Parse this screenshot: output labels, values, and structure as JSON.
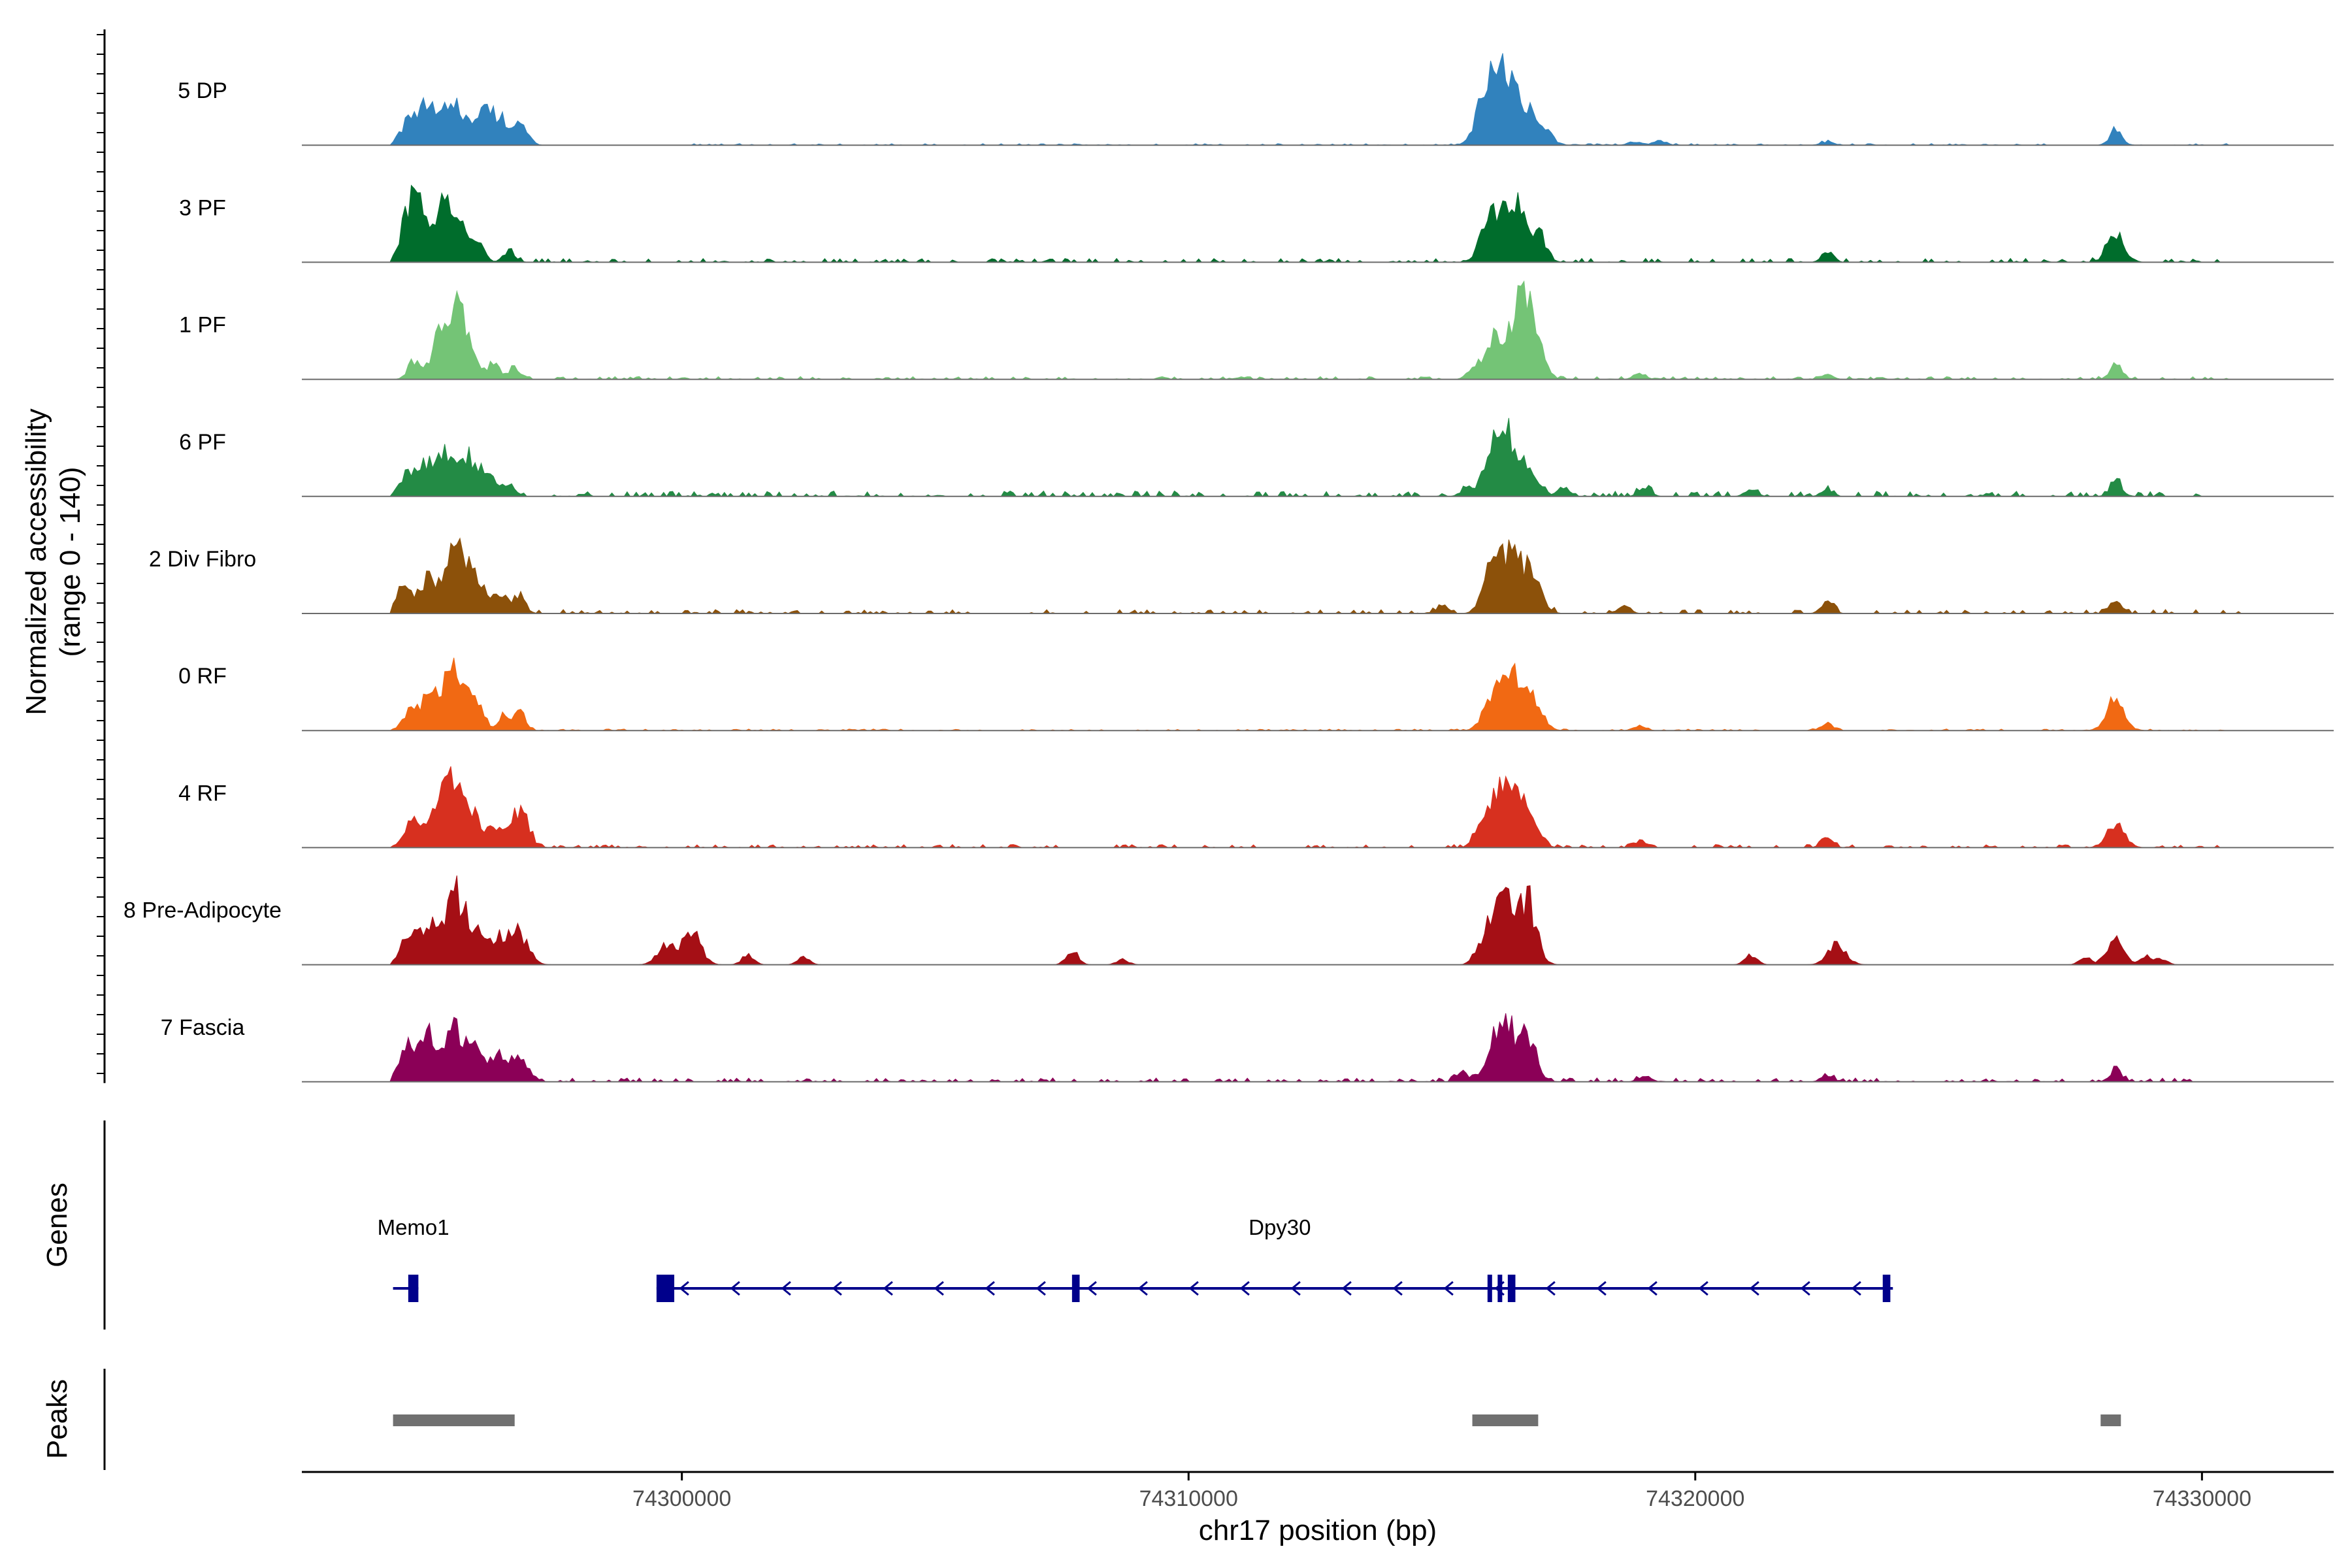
{
  "chart_data": {
    "type": "area",
    "title": "",
    "xlabel": "chr17 position (bp)",
    "ylabel": "Normalized accessibility\n(range 0 - 140)",
    "ylabel_lines": [
      "Normalized accessibility",
      "(range 0 - 140)"
    ],
    "ylim": [
      0,
      140
    ],
    "xlim": [
      74292500,
      74332600
    ],
    "x_ticks": [
      74300000,
      74310000,
      74320000,
      74330000
    ],
    "x_tick_labels": [
      "74300000",
      "74310000",
      "74320000",
      "74330000"
    ],
    "tracks": [
      {
        "name": "5 DP",
        "color": "#3182bd",
        "bg": 1.0,
        "background_extent": [
          74300000,
          74330500
        ],
        "background_max": 3,
        "peaks": [
          [
            74294600,
            25
          ],
          [
            74295000,
            45
          ],
          [
            74295500,
            55
          ],
          [
            74296000,
            30
          ],
          [
            74296300,
            28
          ],
          [
            74296500,
            12
          ],
          [
            74296900,
            15
          ],
          [
            74296700,
            18
          ],
          [
            74316000,
            62
          ],
          [
            74316300,
            70
          ],
          [
            74316700,
            40
          ],
          [
            74315800,
            30
          ],
          [
            74317100,
            12
          ],
          [
            74318800,
            4
          ],
          [
            74319300,
            6
          ],
          [
            74322600,
            4
          ],
          [
            74328300,
            18
          ]
        ]
      },
      {
        "name": "3 PF",
        "color": "#006d2c",
        "bg": 2.5,
        "background_extent": [
          74296800,
          74330800
        ],
        "background_max": 5,
        "peaks": [
          [
            74294600,
            40
          ],
          [
            74294800,
            50
          ],
          [
            74295300,
            58
          ],
          [
            74295600,
            45
          ],
          [
            74296000,
            20
          ],
          [
            74296600,
            15
          ],
          [
            74316000,
            45
          ],
          [
            74316400,
            65
          ],
          [
            74316800,
            35
          ],
          [
            74315800,
            20
          ],
          [
            74317000,
            10
          ],
          [
            74322600,
            8
          ],
          [
            74328300,
            30
          ]
        ]
      },
      {
        "name": "1 PF",
        "color": "#74c476",
        "bg": 1.8,
        "background_extent": [
          74296800,
          74330500
        ],
        "background_max": 4,
        "peaks": [
          [
            74294700,
            20
          ],
          [
            74295200,
            40
          ],
          [
            74295500,
            70
          ],
          [
            74295800,
            35
          ],
          [
            74296300,
            20
          ],
          [
            74296700,
            15
          ],
          [
            74316000,
            50
          ],
          [
            74316500,
            75
          ],
          [
            74316800,
            55
          ],
          [
            74315600,
            10
          ],
          [
            74318900,
            6
          ],
          [
            74322600,
            5
          ],
          [
            74328300,
            18
          ]
        ]
      },
      {
        "name": "6 PF",
        "color": "#238b45",
        "bg": 3.5,
        "background_extent": [
          74296800,
          74330000
        ],
        "background_max": 7,
        "peaks": [
          [
            74294600,
            25
          ],
          [
            74295000,
            38
          ],
          [
            74295400,
            48
          ],
          [
            74295800,
            40
          ],
          [
            74296200,
            25
          ],
          [
            74296600,
            15
          ],
          [
            74316000,
            45
          ],
          [
            74316300,
            60
          ],
          [
            74316700,
            35
          ],
          [
            74315500,
            12
          ],
          [
            74317400,
            10
          ],
          [
            74319000,
            10
          ],
          [
            74321100,
            8
          ],
          [
            74322600,
            6
          ],
          [
            74328300,
            20
          ]
        ]
      },
      {
        "name": "2 Div Fibro",
        "color": "#8c510a",
        "bg": 2.5,
        "background_extent": [
          74296800,
          74330800
        ],
        "background_max": 4,
        "peaks": [
          [
            74294500,
            28
          ],
          [
            74295000,
            40
          ],
          [
            74295500,
            72
          ],
          [
            74295900,
            45
          ],
          [
            74296400,
            25
          ],
          [
            74296800,
            20
          ],
          [
            74316000,
            55
          ],
          [
            74316400,
            75
          ],
          [
            74316800,
            45
          ],
          [
            74315000,
            10
          ],
          [
            74318600,
            8
          ],
          [
            74322600,
            14
          ],
          [
            74328300,
            14
          ]
        ]
      },
      {
        "name": "0 RF",
        "color": "#f16913",
        "bg": 1.0,
        "background_extent": [
          74296800,
          74330500
        ],
        "background_max": 2,
        "peaks": [
          [
            74294700,
            25
          ],
          [
            74295100,
            40
          ],
          [
            74295500,
            62
          ],
          [
            74295900,
            35
          ],
          [
            74296500,
            20
          ],
          [
            74296800,
            20
          ],
          [
            74316000,
            42
          ],
          [
            74316400,
            60
          ],
          [
            74316800,
            40
          ],
          [
            74318900,
            6
          ],
          [
            74322600,
            8
          ],
          [
            74328300,
            38
          ]
        ]
      },
      {
        "name": "4 RF",
        "color": "#d7301f",
        "bg": 2.0,
        "background_extent": [
          74296800,
          74330500
        ],
        "background_max": 4,
        "peaks": [
          [
            74294700,
            30
          ],
          [
            74295200,
            40
          ],
          [
            74295500,
            65
          ],
          [
            74295900,
            35
          ],
          [
            74296400,
            25
          ],
          [
            74296800,
            40
          ],
          [
            74316000,
            40
          ],
          [
            74316300,
            60
          ],
          [
            74316700,
            55
          ],
          [
            74315700,
            15
          ],
          [
            74318900,
            8
          ],
          [
            74322600,
            10
          ],
          [
            74328300,
            25
          ]
        ]
      },
      {
        "name": "8 Pre-Adipocyte",
        "color": "#a50f15",
        "bg": 0,
        "background_extent": [
          74300000,
          74330000
        ],
        "background_max": 0,
        "peaks": [
          [
            74294600,
            30
          ],
          [
            74295000,
            45
          ],
          [
            74295500,
            85
          ],
          [
            74295900,
            40
          ],
          [
            74296400,
            30
          ],
          [
            74296800,
            35
          ],
          [
            74299700,
            22
          ],
          [
            74300200,
            40
          ],
          [
            74301300,
            12
          ],
          [
            74302400,
            8
          ],
          [
            74307700,
            18
          ],
          [
            74308700,
            6
          ],
          [
            74315700,
            10
          ],
          [
            74316000,
            50
          ],
          [
            74316300,
            75
          ],
          [
            74316700,
            70
          ],
          [
            74321100,
            12
          ],
          [
            74322800,
            25
          ],
          [
            74327700,
            8
          ],
          [
            74328300,
            30
          ],
          [
            74328900,
            10
          ],
          [
            74329200,
            6
          ]
        ]
      },
      {
        "name": "7 Fascia",
        "color": "#8b0057",
        "bg": 2.5,
        "background_extent": [
          74296800,
          74330000
        ],
        "background_max": 5,
        "peaks": [
          [
            74294600,
            38
          ],
          [
            74295000,
            50
          ],
          [
            74295500,
            55
          ],
          [
            74295900,
            40
          ],
          [
            74296400,
            30
          ],
          [
            74296800,
            25
          ],
          [
            74316000,
            35
          ],
          [
            74316300,
            55
          ],
          [
            74316700,
            50
          ],
          [
            74315400,
            10
          ],
          [
            74319000,
            8
          ],
          [
            74322600,
            6
          ],
          [
            74328300,
            15
          ]
        ]
      }
    ],
    "genes": {
      "title": "Genes",
      "color": "#00008b",
      "items": [
        {
          "name": "Memo1",
          "start": 74294300,
          "end": 74294800,
          "strand": "-",
          "exons": [
            [
              74294600,
              74294800
            ]
          ]
        },
        {
          "name": "Dpy30",
          "start": 74299500,
          "end": 74323900,
          "strand": "-",
          "exons": [
            [
              74299500,
              74299850
            ],
            [
              74307700,
              74307850
            ],
            [
              74315900,
              74315960
            ],
            [
              74316100,
              74316160
            ],
            [
              74316300,
              74316450
            ],
            [
              74323700,
              74323850
            ]
          ]
        }
      ]
    },
    "peaks_track": {
      "title": "Peaks",
      "color": "#707070",
      "regions": [
        [
          74294300,
          74296700
        ],
        [
          74315600,
          74316900
        ],
        [
          74328000,
          74328400
        ]
      ]
    }
  }
}
